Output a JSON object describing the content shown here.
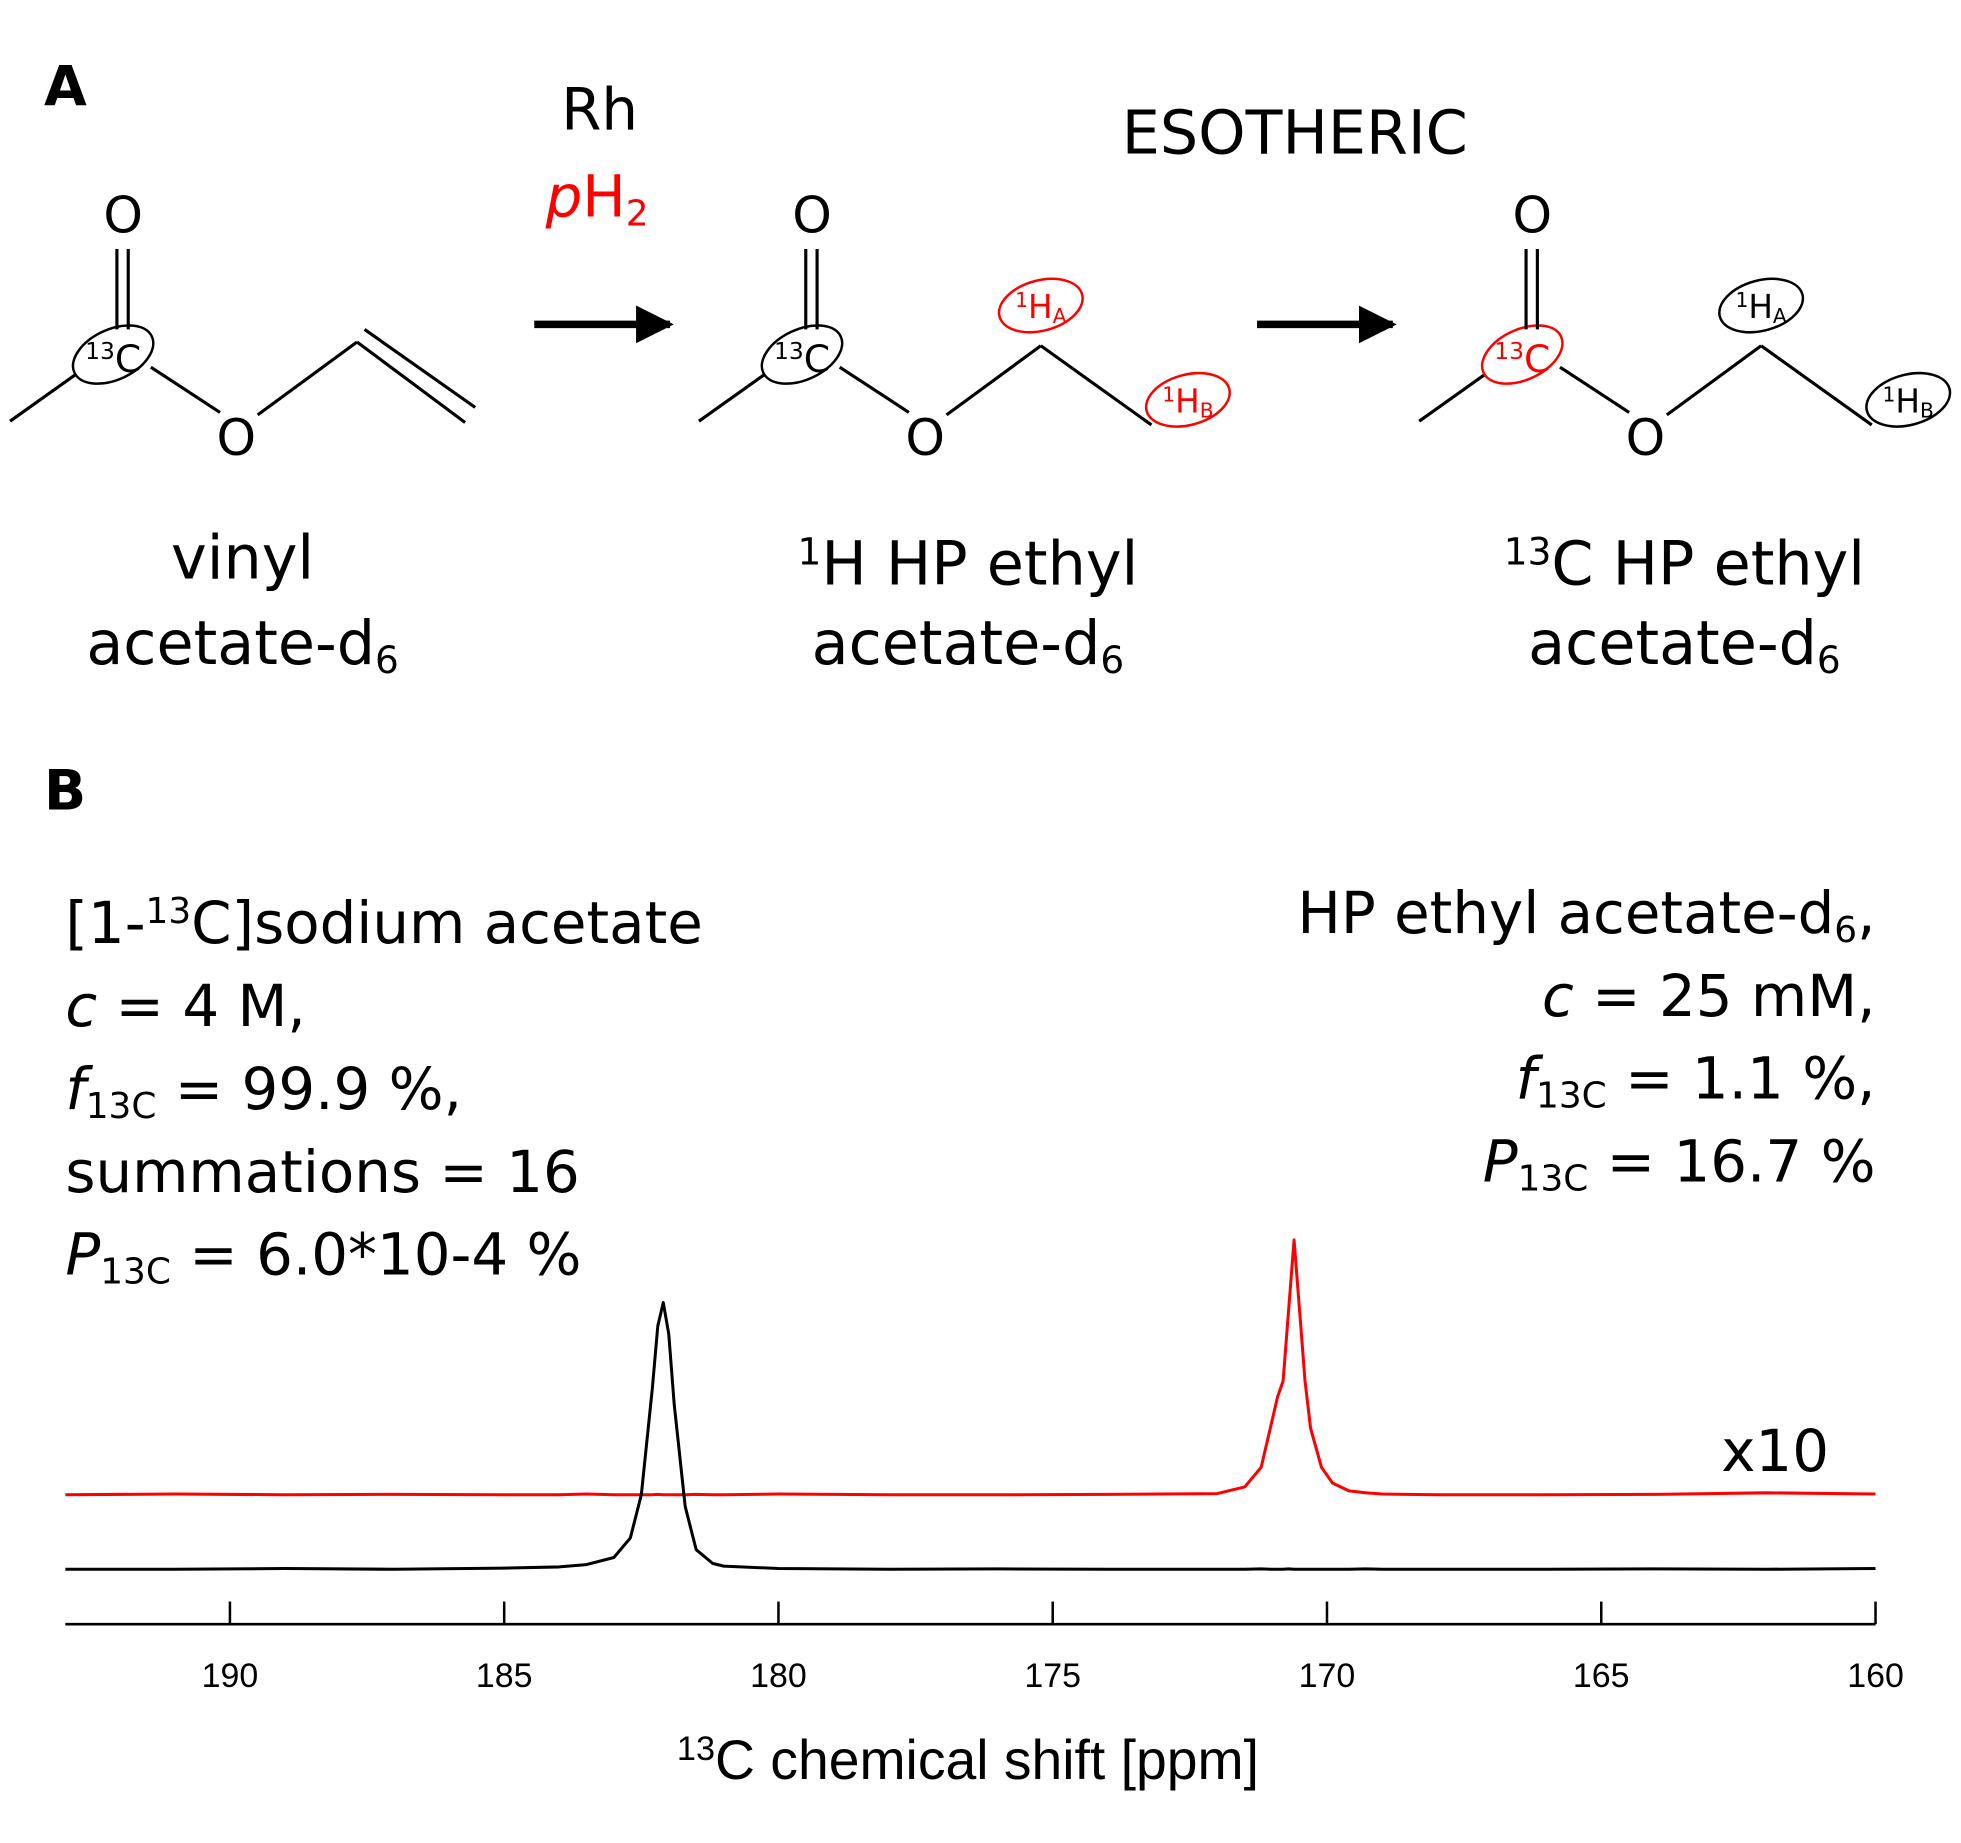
{
  "scheme": {
    "panel_label": "A",
    "catalyst": "Rh",
    "reagent": [
      {
        "text": "p",
        "italic": true
      },
      {
        "text": "H"
      },
      {
        "text": "2",
        "pos": "sub"
      }
    ],
    "method": "ESOTHERIC",
    "molecules": [
      {
        "carbonyl_o": "O",
        "ester_o": "O",
        "carbon": [
          {
            "text": "13",
            "pos": "sup"
          },
          {
            "text": "C"
          }
        ],
        "name": [
          [
            {
              "text": "vinyl"
            }
          ],
          [
            {
              "text": "acetate-d"
            },
            {
              "text": "6",
              "pos": "sub"
            }
          ]
        ]
      },
      {
        "carbonyl_o": "O",
        "ester_o": "O",
        "carbon": [
          {
            "text": "13",
            "pos": "sup"
          },
          {
            "text": "C"
          }
        ],
        "h_a": [
          {
            "text": "1",
            "pos": "sup"
          },
          {
            "text": "H"
          },
          {
            "text": "A",
            "pos": "sub"
          }
        ],
        "h_b": [
          {
            "text": "1",
            "pos": "sup"
          },
          {
            "text": "H"
          },
          {
            "text": "B",
            "pos": "sub"
          }
        ],
        "name": [
          [
            {
              "text": "1",
              "pos": "sup"
            },
            {
              "text": "H HP ethyl"
            }
          ],
          [
            {
              "text": "acetate-d"
            },
            {
              "text": "6",
              "pos": "sub"
            }
          ]
        ]
      },
      {
        "carbonyl_o": "O",
        "ester_o": "O",
        "carbon": [
          {
            "text": "13",
            "pos": "sup"
          },
          {
            "text": "C"
          }
        ],
        "h_a": [
          {
            "text": "1",
            "pos": "sup"
          },
          {
            "text": "H"
          },
          {
            "text": "A",
            "pos": "sub"
          }
        ],
        "h_b": [
          {
            "text": "1",
            "pos": "sup"
          },
          {
            "text": "H"
          },
          {
            "text": "B",
            "pos": "sub"
          }
        ],
        "name": [
          [
            {
              "text": "13",
              "pos": "sup"
            },
            {
              "text": "C HP ethyl"
            }
          ],
          [
            {
              "text": "acetate-d"
            },
            {
              "text": "6",
              "pos": "sub"
            }
          ]
        ]
      }
    ]
  },
  "chart_data": {
    "type": "line",
    "panel_label": "B",
    "x": [
      193,
      191,
      189,
      187,
      185,
      184,
      183.5,
      183,
      182.7,
      182.5,
      182.3,
      182.2,
      182.1,
      182.0,
      181.9,
      181.7,
      181.5,
      181.2,
      181,
      180,
      178,
      176,
      174,
      172,
      171.5,
      171.2,
      171,
      170.9,
      170.8,
      170.7,
      170.6,
      170.5,
      170.4,
      170.3,
      170.1,
      169.9,
      169.6,
      169.3,
      169,
      168,
      166,
      164,
      162,
      160
    ],
    "series": [
      {
        "color": "#ff0000",
        "values": [
          33,
          33.2,
          33,
          33.1,
          33,
          33,
          33.2,
          33,
          33,
          33,
          33,
          33.1,
          33,
          33,
          33,
          33,
          33.1,
          33,
          33,
          33.2,
          33,
          33,
          33.1,
          33.3,
          35,
          40,
          52,
          58,
          62,
          80,
          98,
          80,
          62,
          50,
          40,
          36,
          34,
          33.5,
          33.2,
          33,
          33,
          33.1,
          33.5,
          33.2
        ]
      },
      {
        "color": "#000000",
        "values": [
          14,
          14,
          14.2,
          14,
          14.3,
          14.6,
          15.2,
          17,
          22,
          33,
          60,
          76,
          82,
          74,
          56,
          30,
          19,
          15.5,
          14.8,
          14.2,
          14,
          14.1,
          14,
          14,
          14,
          14.1,
          14,
          14,
          14,
          14.1,
          14,
          14,
          14,
          14,
          14,
          14,
          14,
          14.1,
          14,
          14,
          14,
          14.1,
          14,
          14.2
        ]
      }
    ],
    "xlim": [
      193,
      160
    ],
    "ylim": [
      0,
      100
    ],
    "xticks": [
      190,
      185,
      180,
      175,
      170,
      165,
      160
    ],
    "xlabel": [
      {
        "text": "13",
        "pos": "sup"
      },
      {
        "text": "C chemical shift [ppm]"
      }
    ],
    "annotations": [
      {
        "color": "#000000",
        "align": "left",
        "lines": [
          [
            {
              "text": "[1-"
            },
            {
              "text": "13",
              "pos": "sup"
            },
            {
              "text": "C]sodium acetate"
            }
          ],
          [
            {
              "text": "c",
              "italic": true
            },
            {
              "text": " = 4 M,"
            }
          ],
          [
            {
              "text": "f",
              "italic": true
            },
            {
              "text": "13C",
              "pos": "sub"
            },
            {
              "text": " = 99.9 %,"
            }
          ],
          [
            {
              "text": "summations = 16"
            }
          ],
          [
            {
              "text": "P",
              "italic": true
            },
            {
              "text": "13C",
              "pos": "sub"
            },
            {
              "text": " = 6.0*10-4 %"
            }
          ]
        ]
      },
      {
        "color": "#ff0000",
        "align": "right",
        "lines": [
          [
            {
              "text": "HP ethyl acetate-d"
            },
            {
              "text": "6",
              "pos": "sub"
            },
            {
              "text": ","
            }
          ],
          [
            {
              "text": "c",
              "italic": true
            },
            {
              "text": " = 25 mM,"
            }
          ],
          [
            {
              "text": "f",
              "italic": true
            },
            {
              "text": "13C",
              "pos": "sub"
            },
            {
              "text": " = 1.1 %,"
            }
          ],
          [
            {
              "text": "P",
              "italic": true
            },
            {
              "text": "13C",
              "pos": "sub"
            },
            {
              "text": " = 16.7 %"
            }
          ]
        ]
      },
      {
        "color": "#ff0000",
        "align": "right",
        "lines": [
          [
            {
              "text": "x10"
            }
          ]
        ]
      }
    ]
  }
}
